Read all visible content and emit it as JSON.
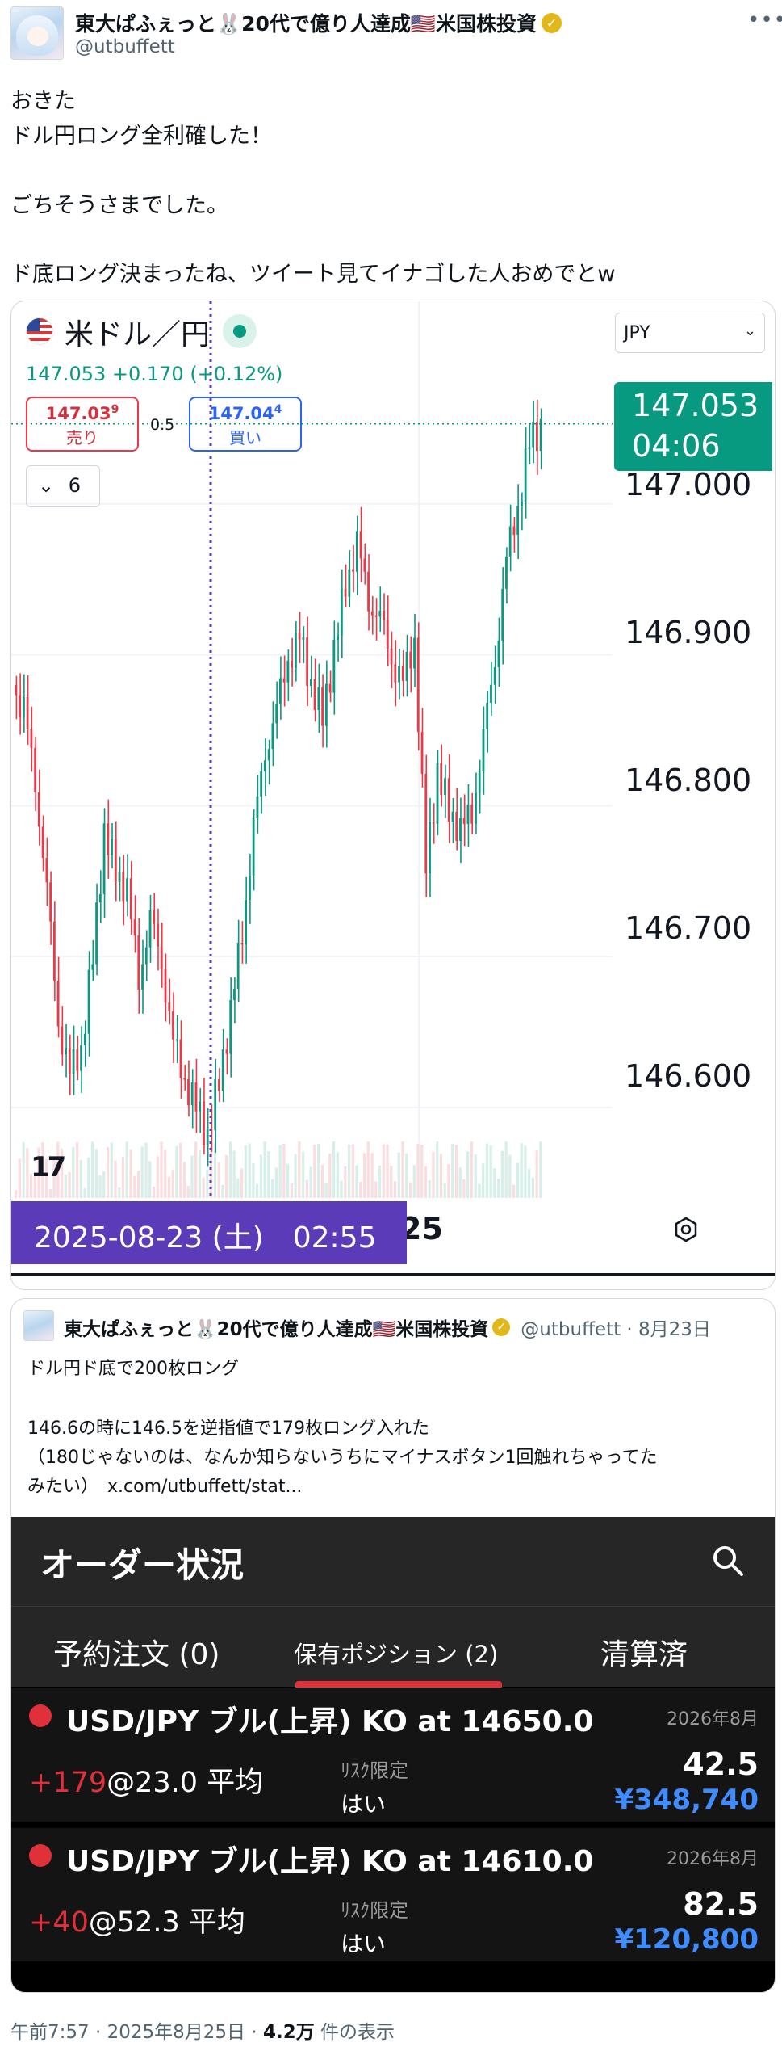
{
  "author": {
    "name": "東大ぱふぇっと🐰20代で億り人達成🇺🇸米国株投資",
    "handle": "@utbuffett"
  },
  "menu_label": "•••",
  "tweet_lines": [
    "おきた",
    "ドル円ロング全利確した！",
    "ごちそうさまでした。",
    "ド底ロング決まったね、ツイート見てイナゴした人おめでとw"
  ],
  "chart_card": {
    "symbol_title": "米ドル／円",
    "currency_select": "JPY",
    "price_change": "147.053  +0.170 (+0.12%)",
    "sell": {
      "price_main": "147.03",
      "price_sup": "9",
      "label": "売り"
    },
    "spread": "0.5",
    "buy": {
      "price_main": "147.04",
      "price_sup": "4",
      "label": "買い"
    },
    "candle_count": "6",
    "last_price": "147.053",
    "countdown": "04:06",
    "cursor_date": "2025-08-23 (土)　02:55",
    "date_tail": "25",
    "logo": "17"
  },
  "chart_data": {
    "type": "candlestick",
    "y_ticks": [
      "147.000",
      "146.900",
      "146.800",
      "146.700",
      "146.600"
    ],
    "ylim": [
      146.54,
      147.07
    ],
    "last_price": 147.053,
    "cursor_date": "2025-08-23 02:55",
    "close_series": [
      146.86,
      146.82,
      146.74,
      146.66,
      146.62,
      146.64,
      146.7,
      146.78,
      146.76,
      146.74,
      146.69,
      146.72,
      146.7,
      146.64,
      146.62,
      146.6,
      146.58,
      146.62,
      146.66,
      146.72,
      146.78,
      146.84,
      146.86,
      146.9,
      146.91,
      146.88,
      146.86,
      146.9,
      146.95,
      146.97,
      146.94,
      146.92,
      146.9,
      146.88,
      146.91,
      146.76,
      146.82,
      146.8,
      146.78,
      146.8,
      146.84,
      146.9,
      146.96,
      147.0,
      147.04,
      147.05
    ]
  },
  "quote": {
    "name": "東大ぱふぇっと🐰20代で億り人達成🇺🇸米国株投資",
    "meta": "@utbuffett · 8月23日",
    "lines": [
      "ドル円ド底で200枚ロング",
      "146.6の時に146.5を逆指値で179枚ロング入れた",
      "（180じゃないのは、なんか知らないうちにマイナスボタン1回触れちゃってた",
      "みたい）　x.com/utbuffett/stat..."
    ]
  },
  "order": {
    "title": "オーダー状況",
    "tabs": [
      "予約注文 (0)",
      "保有ポジション (2)",
      "清算済"
    ],
    "positions": [
      {
        "symbol": "USD/JPY ブル(上昇) KO at 14650.0",
        "expiry": "2026年8月",
        "qty": "+179",
        "avg": "@23.0 平均",
        "risk_label": "ﾘｽｸ限定",
        "risk_value": "はい",
        "price": "42.5",
        "value": "¥348,740"
      },
      {
        "symbol": "USD/JPY ブル(上昇) KO at 14610.0",
        "expiry": "2026年8月",
        "qty": "+40",
        "avg": "@52.3 平均",
        "risk_label": "ﾘｽｸ限定",
        "risk_value": "はい",
        "price": "82.5",
        "value": "¥120,800"
      }
    ]
  },
  "footer": {
    "time": "午前7:57 · 2025年8月25日 · ",
    "views": "4.2万",
    "views_suffix": " 件の表示"
  },
  "colors": {
    "up": "#089981",
    "down": "#f23645",
    "accent": "#5b3bb8",
    "order_red": "#e0303a",
    "order_blue": "#3f8cff"
  }
}
